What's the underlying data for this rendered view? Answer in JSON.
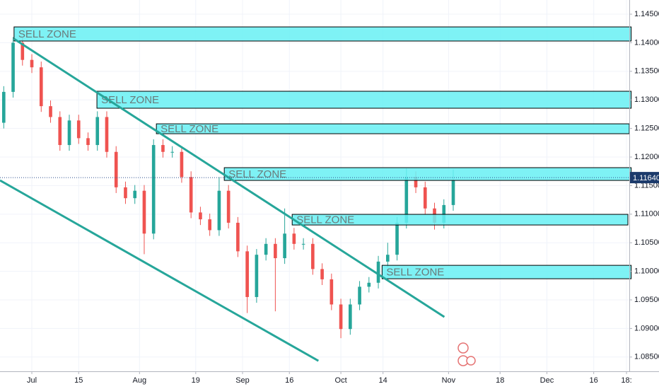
{
  "chart_data": {
    "type": "candlestick",
    "up_color": "#26a69a",
    "down_color": "#ef5350",
    "x": [
      -6,
      -4,
      -2,
      0,
      2,
      4,
      6,
      8,
      10,
      12,
      14,
      16,
      18,
      20,
      22,
      24,
      26,
      28,
      30,
      32,
      34,
      36,
      38,
      40,
      42,
      44,
      46,
      48,
      50,
      52,
      54,
      56,
      58,
      60,
      62,
      64,
      66,
      68,
      70,
      72,
      74,
      76,
      78,
      80,
      82,
      84,
      86,
      88,
      90
    ],
    "open": [
      1.126,
      1.1314,
      1.14,
      1.137,
      1.1357,
      1.1289,
      1.127,
      1.1221,
      1.1264,
      1.1233,
      1.1221,
      1.127,
      1.1209,
      1.1147,
      1.1128,
      1.1141,
      1.1066,
      1.1221,
      1.1209,
      1.1209,
      1.1165,
      1.1103,
      1.1091,
      1.1072,
      1.1141,
      1.1085,
      1.1035,
      1.0955,
      1.1029,
      1.1048,
      1.1023,
      1.1066,
      1.1048,
      1.1048,
      1.1004,
      1.0986,
      1.0942,
      1.0899,
      1.0942,
      1.0973,
      1.098,
      1.1017,
      1.1029,
      1.1085,
      1.1165,
      1.1147,
      1.111,
      1.1085,
      1.1116
    ],
    "close": [
      1.1314,
      1.14,
      1.137,
      1.1357,
      1.1289,
      1.127,
      1.1221,
      1.1264,
      1.1233,
      1.1221,
      1.127,
      1.1209,
      1.1147,
      1.1128,
      1.1141,
      1.1066,
      1.1221,
      1.1209,
      1.1209,
      1.1165,
      1.1103,
      1.1091,
      1.1072,
      1.1141,
      1.1085,
      1.1035,
      1.0955,
      1.1029,
      1.1048,
      1.1023,
      1.1066,
      1.1048,
      1.1048,
      1.1004,
      1.0986,
      1.0942,
      1.0899,
      1.0942,
      1.0973,
      1.098,
      1.1017,
      1.1029,
      1.1085,
      1.1165,
      1.1147,
      1.111,
      1.1085,
      1.1116,
      1.1159
    ],
    "high": [
      1.1324,
      1.141,
      1.141,
      1.138,
      1.1367,
      1.1299,
      1.128,
      1.1274,
      1.1274,
      1.1243,
      1.128,
      1.128,
      1.1219,
      1.1157,
      1.1151,
      1.1151,
      1.1231,
      1.1231,
      1.1219,
      1.1219,
      1.1175,
      1.1113,
      1.1101,
      1.1165,
      1.1151,
      1.1095,
      1.1045,
      1.1039,
      1.1058,
      1.1058,
      1.111,
      1.1076,
      1.1058,
      1.1058,
      1.1014,
      1.0996,
      1.0952,
      1.0952,
      1.0983,
      1.099,
      1.1027,
      1.105,
      1.1095,
      1.118,
      1.1175,
      1.1157,
      1.112,
      1.1126,
      1.1178
    ],
    "low": [
      1.125,
      1.1304,
      1.136,
      1.1347,
      1.1279,
      1.126,
      1.1211,
      1.1211,
      1.1223,
      1.1211,
      1.1211,
      1.1199,
      1.1137,
      1.1118,
      1.1118,
      1.103,
      1.1056,
      1.1199,
      1.1199,
      1.1155,
      1.1093,
      1.1081,
      1.1062,
      1.1062,
      1.1075,
      1.1025,
      1.0927,
      1.0945,
      1.1019,
      1.093,
      1.1013,
      1.1038,
      1.1038,
      1.0994,
      1.0976,
      1.0932,
      1.0883,
      1.0889,
      1.0932,
      1.0963,
      1.097,
      1.1007,
      1.1019,
      1.1075,
      1.1137,
      1.11,
      1.1073,
      1.1075,
      1.1106
    ],
    "xlim": [
      -6.8,
      127.6
    ],
    "ylim": [
      1.0825,
      1.14748
    ],
    "xticks": [
      {
        "value": 0,
        "label": "Jul"
      },
      {
        "value": 10,
        "label": "15"
      },
      {
        "value": 23,
        "label": "Aug"
      },
      {
        "value": 35,
        "label": "19"
      },
      {
        "value": 45,
        "label": "Sep"
      },
      {
        "value": 55,
        "label": "16"
      },
      {
        "value": 66,
        "label": "Oct"
      },
      {
        "value": 75,
        "label": "14"
      },
      {
        "value": 89,
        "label": "Nov"
      },
      {
        "value": 100,
        "label": "18"
      },
      {
        "value": 110,
        "label": "Dec"
      },
      {
        "value": 120,
        "label": "16"
      },
      {
        "value": 127,
        "label": "18:"
      }
    ],
    "yticks": [
      {
        "value": 1.145,
        "label": "1.14500"
      },
      {
        "value": 1.14,
        "label": "1.14000"
      },
      {
        "value": 1.135,
        "label": "1.13500"
      },
      {
        "value": 1.13,
        "label": "1.13000"
      },
      {
        "value": 1.125,
        "label": "1.12500"
      },
      {
        "value": 1.12,
        "label": "1.12000"
      },
      {
        "value": 1.115,
        "label": "1.11500"
      },
      {
        "value": 1.11,
        "label": "1.11000"
      },
      {
        "value": 1.105,
        "label": "1.10500"
      },
      {
        "value": 1.1,
        "label": "1.10000"
      },
      {
        "value": 1.095,
        "label": "1.09500"
      },
      {
        "value": 1.09,
        "label": "1.09000"
      },
      {
        "value": 1.085,
        "label": "1.08500"
      }
    ],
    "grid": true,
    "last_price": {
      "value": 1.1164,
      "label": "1.11640"
    },
    "zones": [
      {
        "label": "SELL ZONE",
        "from": -3.8,
        "to": 128,
        "top": 1.14277,
        "bottom": 1.1403
      },
      {
        "label": "SELL ZONE",
        "from": 13.9,
        "to": 128,
        "top": 1.13151,
        "bottom": 1.12854
      },
      {
        "label": "SELL ZONE",
        "from": 26.6,
        "to": 127.6,
        "top": 1.12581,
        "bottom": 1.12408
      },
      {
        "label": "SELL ZONE",
        "from": 41.1,
        "to": 128,
        "top": 1.11814,
        "bottom": 1.11591
      },
      {
        "label": "SELL ZONE",
        "from": 55.6,
        "to": 127.3,
        "top": 1.10997,
        "bottom": 1.10811
      },
      {
        "label": "SELL ZONE",
        "from": 74.8,
        "to": 128,
        "top": 1.10105,
        "bottom": 1.0987
      }
    ],
    "zone_color": "#67f0f3",
    "trendline_color": "#26a69a",
    "trendlines": [
      {
        "x": [
          -3.8,
          88.1
        ],
        "y": [
          1.14067,
          1.09201
        ]
      },
      {
        "x": [
          -6.8,
          61.2
        ],
        "y": [
          1.11591,
          1.08434
        ]
      }
    ]
  }
}
